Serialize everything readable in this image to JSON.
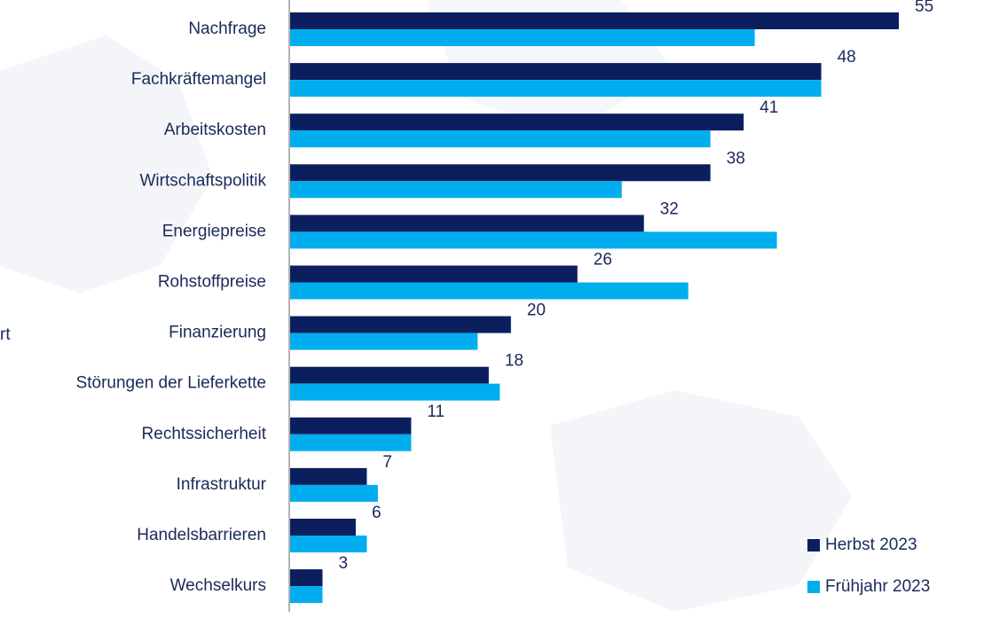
{
  "chart_data": {
    "type": "bar",
    "orientation": "horizontal",
    "categories": [
      "Nachfrage",
      "Fachkräftemangel",
      "Arbeitskosten",
      "Wirtschaftspolitik",
      "Energiepreise",
      "Rohstoffpreise",
      "Finanzierung",
      "Störungen der Lieferkette",
      "Rechtssicherheit",
      "Infrastruktur",
      "Handelsbarrieren",
      "Wechselkurs"
    ],
    "series": [
      {
        "name": "Herbst 2023",
        "color": "#0b1f5e",
        "values": [
          55,
          48,
          41,
          38,
          32,
          26,
          20,
          18,
          11,
          7,
          6,
          3
        ]
      },
      {
        "name": "Frühjahr 2023",
        "color": "#00aeef",
        "values": [
          42,
          48,
          38,
          30,
          44,
          36,
          17,
          19,
          11,
          8,
          7,
          3
        ]
      }
    ],
    "labeled_series": [
      0
    ],
    "legend": "bottom-right"
  },
  "fragment": "rt"
}
